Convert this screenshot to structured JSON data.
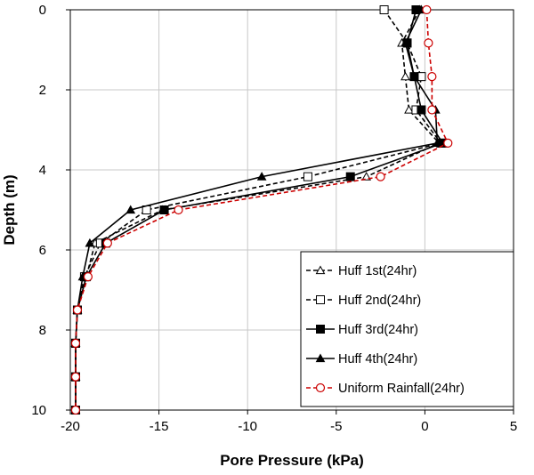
{
  "chart_data": {
    "type": "line",
    "xlabel": "Pore Pressure (kPa)",
    "ylabel": "Depth (m)",
    "xlim": [
      -20,
      5
    ],
    "ylim": [
      0,
      10
    ],
    "y_inverted": true,
    "x_ticks": [
      -20,
      -15,
      -10,
      -5,
      0,
      5
    ],
    "y_ticks": [
      0,
      2,
      4,
      6,
      8,
      10
    ],
    "x_tick_labels": [
      "-20",
      "-15",
      "-10",
      "-5",
      "0",
      "5"
    ],
    "y_tick_labels": [
      "0",
      "2",
      "4",
      "6",
      "8",
      "10"
    ],
    "grid": true,
    "legend_position": "bottom-right",
    "series": [
      {
        "name": "Huff 1st(24hr)",
        "color": "#000000",
        "line_style": "dashed",
        "marker": "open-triangle",
        "x": [
          -0.3,
          -1.3,
          -1.1,
          -0.9,
          0.8,
          -3.3,
          -14.8,
          -18.6,
          -19.1,
          -19.6,
          -19.7,
          -19.7,
          -19.7
        ],
        "y": [
          0,
          0.83,
          1.67,
          2.5,
          3.33,
          4.17,
          5.0,
          5.83,
          6.67,
          7.5,
          8.33,
          9.17,
          10.0
        ]
      },
      {
        "name": "Huff 2nd(24hr)",
        "color": "#000000",
        "line_style": "dashed",
        "marker": "open-square",
        "x": [
          -2.3,
          -1.0,
          -0.2,
          -0.5,
          0.9,
          -6.6,
          -15.7,
          -18.3,
          -19.2,
          -19.6,
          -19.7,
          -19.7,
          -19.7
        ],
        "y": [
          0,
          0.83,
          1.67,
          2.5,
          3.33,
          4.17,
          5.0,
          5.83,
          6.67,
          7.5,
          8.33,
          9.17,
          10.0
        ]
      },
      {
        "name": "Huff 3rd(24hr)",
        "color": "#000000",
        "line_style": "solid",
        "marker": "filled-square",
        "x": [
          -0.5,
          -1.0,
          -0.6,
          -0.2,
          1.0,
          -4.2,
          -14.7,
          -18.0,
          -19.1,
          -19.6,
          -19.7,
          -19.7,
          -19.7
        ],
        "y": [
          0,
          0.83,
          1.67,
          2.5,
          3.33,
          4.17,
          5.0,
          5.83,
          6.67,
          7.5,
          8.33,
          9.17,
          10.0
        ]
      },
      {
        "name": "Huff 4th(24hr)",
        "color": "#000000",
        "line_style": "solid",
        "marker": "filled-triangle",
        "x": [
          -0.2,
          -1.1,
          -0.6,
          0.6,
          0.7,
          -9.2,
          -16.6,
          -18.9,
          -19.3,
          -19.6,
          -19.7,
          -19.7,
          -19.7
        ],
        "y": [
          0,
          0.83,
          1.67,
          2.5,
          3.33,
          4.17,
          5.0,
          5.83,
          6.67,
          7.5,
          8.33,
          9.17,
          10.0
        ]
      },
      {
        "name": "Uniform Rainfall(24hr)",
        "color": "#cc0000",
        "line_style": "dashed",
        "marker": "open-circle",
        "x": [
          0.1,
          0.2,
          0.4,
          0.4,
          1.3,
          -2.5,
          -13.9,
          -17.9,
          -19.0,
          -19.6,
          -19.7,
          -19.7,
          -19.7
        ],
        "y": [
          0,
          0.83,
          1.67,
          2.5,
          3.33,
          4.17,
          5.0,
          5.83,
          6.67,
          7.5,
          8.33,
          9.17,
          10.0
        ]
      }
    ]
  }
}
